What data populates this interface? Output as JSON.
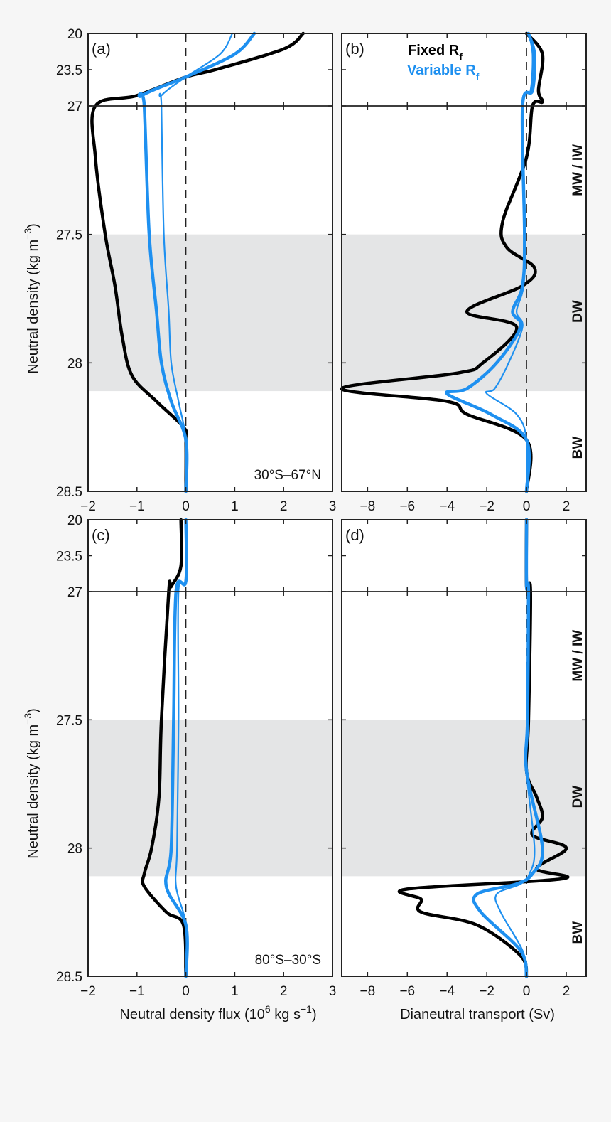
{
  "figure": {
    "background": "#f6f6f6",
    "plot_background": "#ffffff",
    "band_color": "#e4e5e6",
    "fixed_color": "#000000",
    "variable_color": "#1e90f0"
  },
  "legend": {
    "fixed": "Fixed R",
    "fixed_sub": "f",
    "variable": "Variable R",
    "variable_sub": "f"
  },
  "axes": {
    "ylabel": "Neutral density (kg m",
    "ylabel_sup": "−3",
    "ylabel_close": ")",
    "xlabel_left": "Neutral density flux (10",
    "xlabel_left_sup": "6",
    "xlabel_left_mid": " kg s",
    "xlabel_left_sup2": "−1",
    "xlabel_left_close": ")",
    "xlabel_right": "Dianeutral transport (Sv)",
    "y_ticks_upper": [
      "20",
      "23.5",
      "27"
    ],
    "y_ticks_lower": [
      "27.5",
      "28",
      "28.5"
    ],
    "x_ticks_left": [
      "−2",
      "−1",
      "0",
      "1",
      "2",
      "3"
    ],
    "x_ticks_right": [
      "−8",
      "−6",
      "−4",
      "−2",
      "0",
      "2"
    ]
  },
  "panels": {
    "a": {
      "label": "(a)",
      "region": "30°S–67°N"
    },
    "b": {
      "label": "(b)",
      "water_masses": [
        "MW / IW",
        "DW",
        "BW"
      ]
    },
    "c": {
      "label": "(c)",
      "region": "80°S–30°S"
    },
    "d": {
      "label": "(d)",
      "water_masses": [
        "MW / IW",
        "DW",
        "BW"
      ]
    }
  },
  "chart_data": [
    {
      "panel": "a",
      "type": "line",
      "title": "30°S–67°N",
      "xlabel": "Neutral density flux (10^6 kg s^-1)",
      "ylabel": "Neutral density (kg m^-3)",
      "xlim": [
        -2,
        3
      ],
      "ylim_upper": [
        20,
        27
      ],
      "ylim_lower": [
        27,
        28.5
      ],
      "y_axis_inverted": true,
      "shaded_band": [
        27.5,
        28.11
      ],
      "series": [
        {
          "name": "Fixed Rf",
          "y": [
            20,
            21.5,
            23.5,
            24.2,
            26,
            27,
            27.2,
            27.5,
            27.7,
            27.9,
            28.05,
            28.15,
            28.25,
            28.3,
            28.5
          ],
          "x": [
            2.4,
            2.0,
            0.6,
            0.0,
            -1.0,
            -1.85,
            -1.85,
            -1.65,
            -1.45,
            -1.3,
            -1.1,
            -0.6,
            -0.05,
            0.0,
            0.0
          ]
        },
        {
          "name": "Variable Rf (thick)",
          "y": [
            20,
            22,
            24.2,
            26,
            27,
            27.5,
            27.8,
            28.0,
            28.15,
            28.3,
            28.5
          ],
          "x": [
            1.4,
            1.0,
            0.0,
            -0.9,
            -0.85,
            -0.75,
            -0.6,
            -0.5,
            -0.3,
            0.0,
            0.0
          ]
        },
        {
          "name": "Variable Rf (thin)",
          "y": [
            20,
            22,
            24.2,
            26,
            27,
            27.5,
            27.8,
            28.0,
            28.15,
            28.3,
            28.5
          ],
          "x": [
            0.95,
            0.7,
            0.0,
            -0.5,
            -0.5,
            -0.45,
            -0.35,
            -0.3,
            -0.15,
            0.0,
            0.0
          ]
        }
      ]
    },
    {
      "panel": "b",
      "type": "line",
      "xlabel": "Dianeutral transport (Sv)",
      "xlim": [
        -9.3,
        3
      ],
      "ylim_upper": [
        20,
        27
      ],
      "ylim_lower": [
        27,
        28.5
      ],
      "y_axis_inverted": true,
      "shaded_band": [
        27.5,
        28.11
      ],
      "legend": [
        "Fixed Rf",
        "Variable Rf"
      ],
      "annotations": [
        "MW / IW",
        "DW",
        "BW"
      ],
      "series": [
        {
          "name": "Fixed Rf",
          "y": [
            20,
            22,
            25.5,
            26.6,
            27,
            27.2,
            27.45,
            27.55,
            27.63,
            27.7,
            27.8,
            27.86,
            28.0,
            28.04,
            28.1,
            28.15,
            28.2,
            28.3,
            28.5
          ],
          "x": [
            0.0,
            0.8,
            0.6,
            0.8,
            0.3,
            0.0,
            -1.2,
            -1.0,
            0.4,
            -0.2,
            -3.0,
            -0.5,
            -2.2,
            -3.5,
            -9.3,
            -4.0,
            -3.0,
            0.0,
            0.0
          ]
        },
        {
          "name": "Variable Rf (thick)",
          "y": [
            20,
            22,
            25.5,
            27,
            27.5,
            27.7,
            27.8,
            27.86,
            28.0,
            28.1,
            28.12,
            28.2,
            28.3,
            28.5
          ],
          "x": [
            0.1,
            0.4,
            0.3,
            -0.2,
            -0.1,
            -0.2,
            -0.7,
            -0.3,
            -1.5,
            -3.0,
            -4.0,
            -1.8,
            0.0,
            0.0
          ]
        },
        {
          "name": "Variable Rf (thin)",
          "y": [
            20,
            22,
            25.5,
            27,
            27.5,
            27.7,
            27.8,
            27.86,
            28.0,
            28.1,
            28.12,
            28.2,
            28.3,
            28.5
          ],
          "x": [
            0.1,
            0.3,
            0.2,
            -0.2,
            -0.1,
            -0.15,
            -0.5,
            -0.2,
            -0.9,
            -1.6,
            -2.0,
            -0.5,
            0.0,
            0.0
          ]
        }
      ]
    },
    {
      "panel": "c",
      "type": "line",
      "title": "80°S–30°S",
      "xlabel": "Neutral density flux (10^6 kg s^-1)",
      "ylabel": "Neutral density (kg m^-3)",
      "xlim": [
        -2,
        3
      ],
      "ylim_upper": [
        20,
        27
      ],
      "ylim_lower": [
        27,
        28.5
      ],
      "y_axis_inverted": true,
      "shaded_band": [
        27.5,
        28.11
      ],
      "series": [
        {
          "name": "Fixed Rf",
          "y": [
            20,
            24.5,
            26.5,
            27,
            27.5,
            27.8,
            28.0,
            28.1,
            28.15,
            28.25,
            28.3,
            28.5
          ],
          "x": [
            -0.1,
            -0.1,
            -0.3,
            -0.35,
            -0.5,
            -0.55,
            -0.7,
            -0.85,
            -0.85,
            -0.4,
            -0.05,
            0.0
          ]
        },
        {
          "name": "Variable Rf (thick)",
          "y": [
            20,
            26,
            27,
            27.5,
            28.0,
            28.15,
            28.3,
            28.5
          ],
          "x": [
            0.0,
            0.0,
            -0.2,
            -0.25,
            -0.3,
            -0.4,
            0.0,
            0.0
          ]
        },
        {
          "name": "Variable Rf (thin)",
          "y": [
            20,
            26,
            27,
            27.5,
            28.0,
            28.15,
            28.3,
            28.5
          ],
          "x": [
            0.0,
            0.0,
            -0.15,
            -0.15,
            -0.18,
            -0.2,
            0.0,
            0.0
          ]
        }
      ]
    },
    {
      "panel": "d",
      "type": "line",
      "xlabel": "Dianeutral transport (Sv)",
      "xlim": [
        -9.3,
        3
      ],
      "ylim_upper": [
        20,
        27
      ],
      "ylim_lower": [
        27,
        28.5
      ],
      "y_axis_inverted": true,
      "shaded_band": [
        27.5,
        28.11
      ],
      "annotations": [
        "MW / IW",
        "DW",
        "BW"
      ],
      "series": [
        {
          "name": "Fixed Rf",
          "y": [
            20,
            26.5,
            27,
            27.5,
            27.7,
            27.8,
            27.88,
            27.95,
            28.0,
            28.08,
            28.12,
            28.16,
            28.2,
            28.25,
            28.3,
            28.42,
            28.5
          ],
          "x": [
            0.0,
            0.0,
            0.2,
            0.1,
            0.0,
            0.5,
            0.8,
            0.3,
            2.0,
            0.5,
            1.8,
            -6.0,
            -5.3,
            -5.3,
            -2.5,
            -0.3,
            0.0
          ]
        },
        {
          "name": "Variable Rf (thick)",
          "y": [
            20,
            26.5,
            27,
            27.5,
            27.7,
            28.0,
            28.1,
            28.14,
            28.18,
            28.25,
            28.4,
            28.5
          ],
          "x": [
            0.0,
            0.0,
            0.1,
            0.05,
            0.0,
            0.8,
            0.3,
            -0.5,
            -2.5,
            -2.3,
            -0.3,
            0.0
          ]
        },
        {
          "name": "Variable Rf (thin)",
          "y": [
            20,
            26.5,
            27,
            27.5,
            27.7,
            28.0,
            28.1,
            28.14,
            28.18,
            28.25,
            28.4,
            28.5
          ],
          "x": [
            0.0,
            0.0,
            0.1,
            0.05,
            0.0,
            0.4,
            0.15,
            -0.3,
            -1.5,
            -1.3,
            -0.2,
            0.0
          ]
        }
      ]
    }
  ]
}
